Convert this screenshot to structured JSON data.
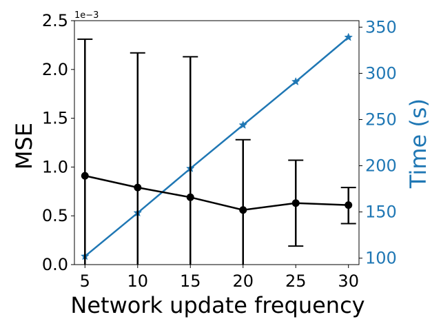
{
  "chart_data": {
    "type": "line",
    "xlabel": "Network update frequency",
    "ylabel_left": "MSE",
    "ylabel_right": "Time (s)",
    "y_left_offset_label": "1e−3",
    "x": [
      5,
      10,
      15,
      20,
      25,
      30
    ],
    "x_ticks": [
      5,
      10,
      15,
      20,
      25,
      30
    ],
    "y_left_ticks": [
      "0.0",
      "0.5",
      "1.0",
      "1.5",
      "2.0",
      "2.5"
    ],
    "y_left_ticks_values": [
      0.0,
      0.5,
      1.0,
      1.5,
      2.0,
      2.5
    ],
    "y_left_lim": [
      0,
      2.5
    ],
    "y_right_ticks": [
      100,
      150,
      200,
      250,
      300,
      350
    ],
    "y_right_lim": [
      93,
      357
    ],
    "x_lim": [
      4,
      31
    ],
    "grid": false,
    "series": [
      {
        "axis": "left",
        "color": "#000000",
        "marker": "circle",
        "values": [
          0.91,
          0.79,
          0.69,
          0.56,
          0.63,
          0.61
        ],
        "error_low": [
          0.0,
          0.0,
          0.0,
          0.0,
          0.19,
          0.42
        ],
        "error_high": [
          2.31,
          2.17,
          2.13,
          1.28,
          1.07,
          0.79
        ]
      },
      {
        "axis": "right",
        "color": "#1f77b4",
        "marker": "star",
        "values": [
          102,
          149,
          197,
          244,
          291,
          339
        ]
      }
    ]
  }
}
